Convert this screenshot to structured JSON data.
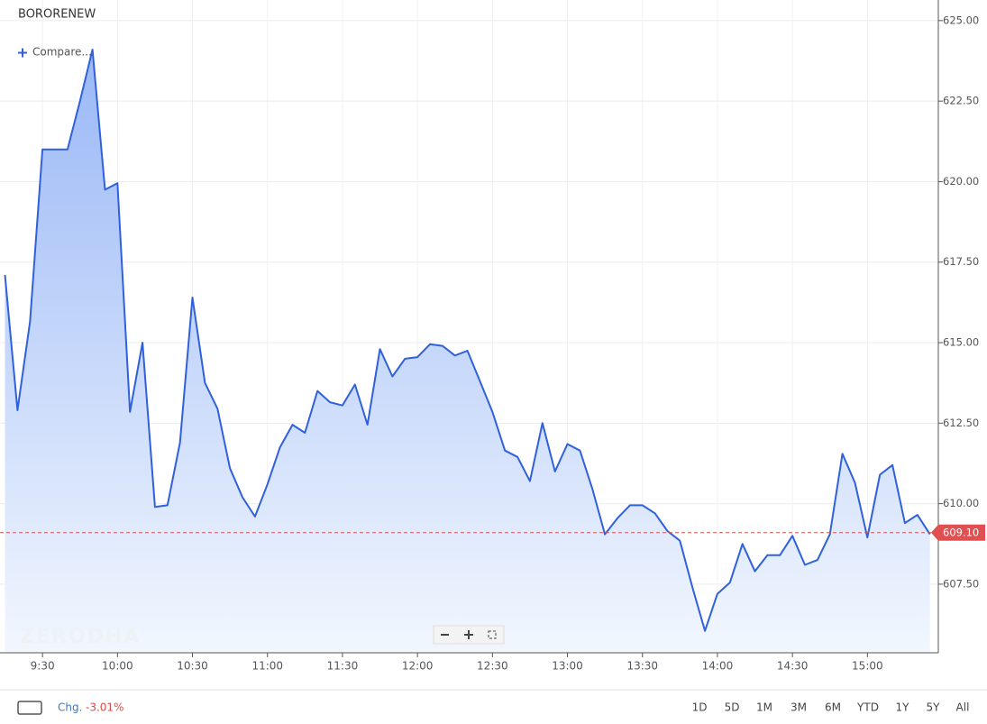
{
  "chart_data": {
    "type": "area",
    "title": "BORORENEW",
    "x": [
      "9:15",
      "9:20",
      "9:25",
      "9:30",
      "9:35",
      "9:40",
      "9:45",
      "9:50",
      "9:55",
      "10:00",
      "10:05",
      "10:10",
      "10:15",
      "10:20",
      "10:25",
      "10:30",
      "10:35",
      "10:40",
      "10:45",
      "10:50",
      "10:55",
      "11:00",
      "11:05",
      "11:10",
      "11:15",
      "11:20",
      "11:25",
      "11:30",
      "11:35",
      "11:40",
      "11:45",
      "11:50",
      "11:55",
      "12:00",
      "12:05",
      "12:10",
      "12:15",
      "12:20",
      "12:25",
      "12:30",
      "12:35",
      "12:40",
      "12:45",
      "12:50",
      "12:55",
      "13:00",
      "13:05",
      "13:10",
      "13:15",
      "13:20",
      "13:25",
      "13:30",
      "13:35",
      "13:40",
      "13:45",
      "13:50",
      "13:55",
      "14:00",
      "14:05",
      "14:10",
      "14:15",
      "14:20",
      "14:25",
      "14:30",
      "14:35",
      "14:40",
      "14:45",
      "14:50",
      "14:55",
      "15:00",
      "15:05",
      "15:10",
      "15:15",
      "15:20",
      "15:25"
    ],
    "series": [
      {
        "name": "BORORENEW",
        "color": "#3060db",
        "values": [
          617.1,
          612.9,
          615.65,
          621.0,
          621.0,
          621.0,
          622.5,
          624.1,
          619.75,
          619.95,
          612.85,
          615.0,
          609.9,
          609.95,
          611.9,
          616.4,
          613.75,
          612.95,
          611.1,
          610.2,
          609.6,
          610.6,
          611.75,
          612.45,
          612.2,
          613.5,
          613.15,
          613.05,
          613.7,
          612.45,
          614.8,
          613.95,
          614.5,
          614.55,
          614.95,
          614.9,
          614.6,
          614.75,
          613.8,
          612.85,
          611.65,
          611.45,
          610.7,
          612.5,
          611.0,
          611.85,
          611.65,
          610.45,
          609.05,
          609.55,
          609.95,
          609.95,
          609.7,
          609.15,
          608.85,
          607.4,
          606.05,
          607.2,
          607.55,
          608.75,
          607.9,
          608.4,
          608.4,
          609.0,
          608.1,
          608.25,
          609.05,
          611.55,
          610.65,
          608.95,
          610.9,
          611.2,
          609.4,
          609.65,
          609.05
        ]
      }
    ],
    "xlim": [
      "9:13",
      "15:28"
    ],
    "xticks": [
      "9:30",
      "10:00",
      "10:30",
      "11:00",
      "11:30",
      "12:00",
      "12:30",
      "13:00",
      "13:30",
      "14:00",
      "14:30",
      "15:00"
    ],
    "ylim": [
      605.37,
      625.64
    ],
    "yticks": [
      {
        "value": 607.5,
        "label": "607.50"
      },
      {
        "value": 610,
        "label": "610.00"
      },
      {
        "value": 612.5,
        "label": "612.50"
      },
      {
        "value": 615,
        "label": "615.00"
      },
      {
        "value": 617.5,
        "label": "617.50"
      },
      {
        "value": 620,
        "label": "620.00"
      },
      {
        "value": 622.5,
        "label": "622.50"
      },
      {
        "value": 625,
        "label": "625.00"
      }
    ],
    "last_price": {
      "value": 609.1,
      "label": "609.10"
    },
    "grid": true
  },
  "ui": {
    "compare": "Compare...",
    "watermark": "ZERODHA",
    "change_label": "Chg.",
    "change": "-3.01%",
    "ranges": [
      "1D",
      "5D",
      "1M",
      "3M",
      "6M",
      "YTD",
      "1Y",
      "5Y",
      "All"
    ]
  }
}
